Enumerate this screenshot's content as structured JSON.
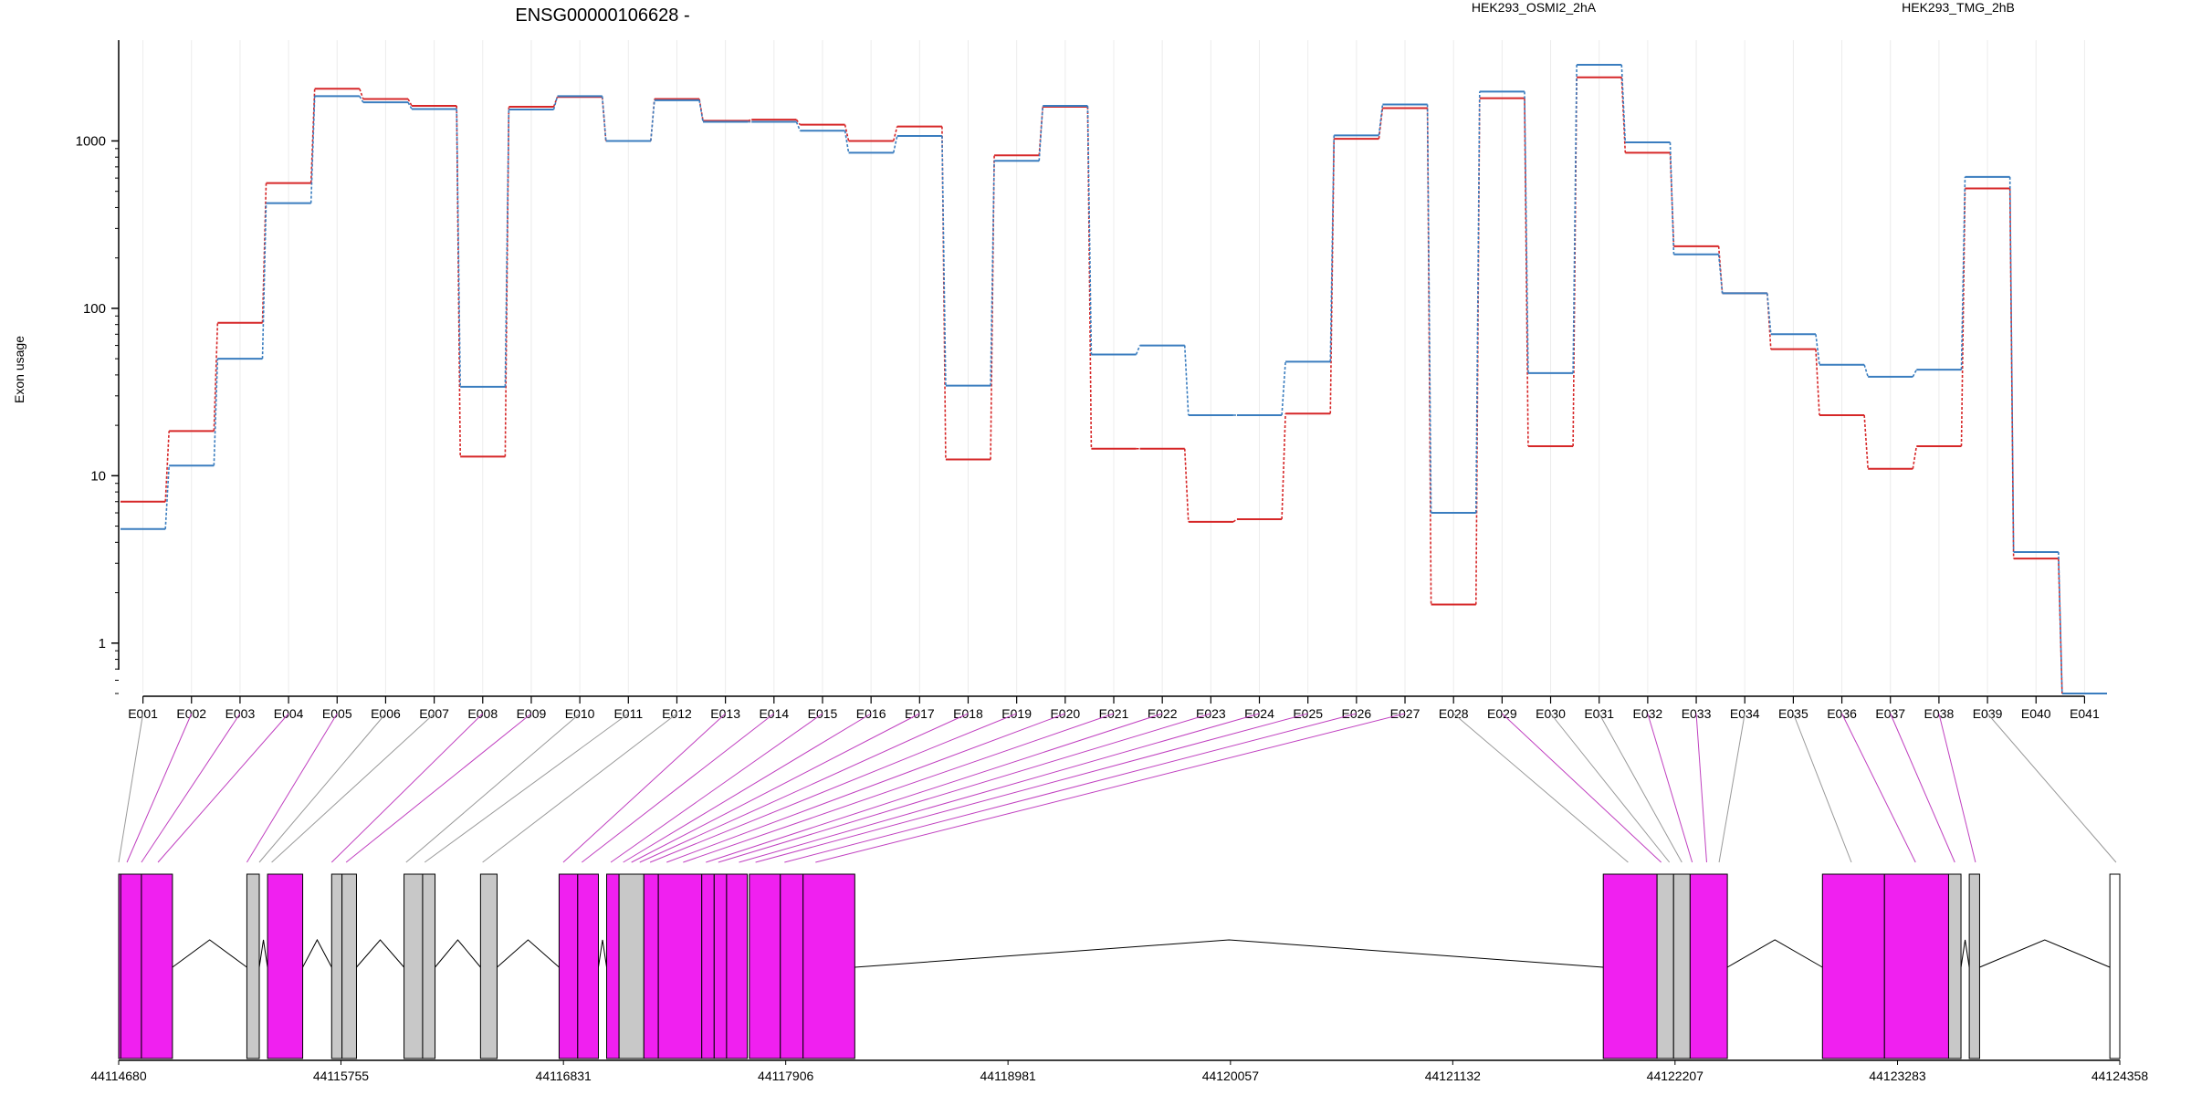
{
  "title": "ENSG00000106628 -",
  "chart_data": {
    "type": "line",
    "ylabel": "Exon usage",
    "yscale": "log",
    "ylim": [
      0.5,
      4000
    ],
    "yticks": [
      "1",
      "10",
      "100",
      "1000"
    ],
    "grid": "vertical",
    "legend": "top",
    "categories": [
      "E001",
      "E002",
      "E003",
      "E004",
      "E005",
      "E006",
      "E007",
      "E008",
      "E009",
      "E010",
      "E011",
      "E012",
      "E013",
      "E014",
      "E015",
      "E016",
      "E017",
      "E018",
      "E019",
      "E020",
      "E021",
      "E022",
      "E023",
      "E024",
      "E025",
      "E026",
      "E027",
      "E028",
      "E029",
      "E030",
      "E031",
      "E032",
      "E033",
      "E034",
      "E035",
      "E036",
      "E037",
      "E038",
      "E039",
      "E040",
      "E041"
    ],
    "series": [
      {
        "name": "HEK293_OSMI2_2hA",
        "color": "#d62728",
        "values": [
          7,
          18.5,
          82,
          560,
          2050,
          1780,
          1620,
          13,
          1600,
          1830,
          1000,
          1780,
          1320,
          1340,
          1250,
          1000,
          1220,
          12.5,
          820,
          1600,
          14.5,
          14.5,
          5.3,
          5.5,
          23.5,
          1030,
          1570,
          1.7,
          1800,
          15,
          2400,
          850,
          235,
          123,
          57,
          23,
          11,
          15,
          520,
          3.2,
          0.5
        ]
      },
      {
        "name": "HEK293_TMG_2hB",
        "color": "#3a7dbf",
        "values": [
          4.8,
          11.5,
          50,
          425,
          1850,
          1700,
          1550,
          34,
          1540,
          1850,
          1000,
          1750,
          1300,
          1300,
          1150,
          850,
          1070,
          34.5,
          760,
          1620,
          53,
          60,
          23,
          23,
          48,
          1080,
          1650,
          6,
          1970,
          41,
          2850,
          980,
          210,
          123,
          70,
          46,
          39,
          43,
          610,
          3.5,
          0.5
        ]
      }
    ],
    "genome_axis": {
      "ticks": [
        "44114680",
        "44115755",
        "44116831",
        "44117906",
        "44118981",
        "44120057",
        "44121132",
        "44122207",
        "44123283",
        "44124358"
      ],
      "start": 44114680,
      "end": 44124358
    },
    "exon_bins": [
      {
        "start": 44114680,
        "end": 44114690,
        "color": "#f020f0"
      },
      {
        "start": 44114690,
        "end": 44114790,
        "color": "#f020f0"
      },
      {
        "start": 44114790,
        "end": 44114940,
        "color": "#f020f0"
      },
      {
        "start": 44115300,
        "end": 44115360,
        "color": "#c8c8c8"
      },
      {
        "start": 44115400,
        "end": 44115570,
        "color": "#f020f0"
      },
      {
        "start": 44115710,
        "end": 44115760,
        "color": "#c8c8c8"
      },
      {
        "start": 44115760,
        "end": 44115830,
        "color": "#c8c8c8"
      },
      {
        "start": 44116060,
        "end": 44116150,
        "color": "#c8c8c8"
      },
      {
        "start": 44116150,
        "end": 44116210,
        "color": "#c8c8c8"
      },
      {
        "start": 44116430,
        "end": 44116510,
        "color": "#c8c8c8"
      },
      {
        "start": 44116810,
        "end": 44116900,
        "color": "#f020f0"
      },
      {
        "start": 44116900,
        "end": 44117000,
        "color": "#f020f0"
      },
      {
        "start": 44117040,
        "end": 44117100,
        "color": "#f020f0"
      },
      {
        "start": 44117100,
        "end": 44117220,
        "color": "#c8c8c8"
      },
      {
        "start": 44117220,
        "end": 44117290,
        "color": "#f020f0"
      },
      {
        "start": 44117290,
        "end": 44117500,
        "color": "#f020f0"
      },
      {
        "start": 44117500,
        "end": 44117560,
        "color": "#f020f0"
      },
      {
        "start": 44117560,
        "end": 44117620,
        "color": "#f020f0"
      },
      {
        "start": 44117620,
        "end": 44117720,
        "color": "#f020f0"
      },
      {
        "start": 44117730,
        "end": 44117880,
        "color": "#f020f0"
      },
      {
        "start": 44117880,
        "end": 44117990,
        "color": "#f020f0"
      },
      {
        "start": 44117990,
        "end": 44118240,
        "color": "#f020f0"
      },
      {
        "start": 44121860,
        "end": 44122120,
        "color": "#f020f0"
      },
      {
        "start": 44122120,
        "end": 44122200,
        "color": "#c8c8c8"
      },
      {
        "start": 44122200,
        "end": 44122280,
        "color": "#c8c8c8"
      },
      {
        "start": 44122280,
        "end": 44122460,
        "color": "#f020f0"
      },
      {
        "start": 44122920,
        "end": 44123220,
        "color": "#f020f0"
      },
      {
        "start": 44123220,
        "end": 44123530,
        "color": "#f020f0"
      },
      {
        "start": 44123530,
        "end": 44123590,
        "color": "#c8c8c8"
      },
      {
        "start": 44123630,
        "end": 44123680,
        "color": "#c8c8c8"
      },
      {
        "start": 44124310,
        "end": 44124358,
        "color": "#ffffff"
      }
    ],
    "connector_targets": [
      44114680,
      44114720,
      44114790,
      44114870,
      44115300,
      44115360,
      44115420,
      44115710,
      44115780,
      44116070,
      44116160,
      44116440,
      44116830,
      44116920,
      44117060,
      44117120,
      44117160,
      44117200,
      44117250,
      44117330,
      44117410,
      44117520,
      44117580,
      44117680,
      44117760,
      44117900,
      44118050,
      44121980,
      44122140,
      44122180,
      44122240,
      44122290,
      44122360,
      44122420,
      44123060,
      44123370,
      44123560,
      44123660,
      44124340
    ]
  }
}
